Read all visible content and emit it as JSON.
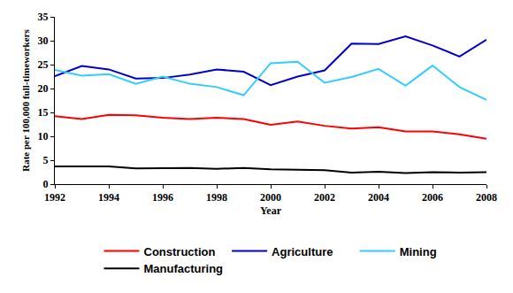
{
  "chart_data": {
    "type": "line",
    "x_label": "Year",
    "y_label": "Rate per 100,000 full-timeworkers",
    "x": [
      1992,
      1993,
      1994,
      1995,
      1996,
      1997,
      1998,
      1999,
      2000,
      2001,
      2002,
      2003,
      2004,
      2005,
      2006,
      2007,
      2008
    ],
    "series": [
      {
        "name": "Construction",
        "color": "#ff0000",
        "values": [
          14.2,
          13.6,
          14.5,
          14.4,
          13.9,
          13.6,
          13.9,
          13.6,
          12.4,
          13.1,
          12.2,
          11.6,
          11.9,
          11.0,
          11.0,
          10.4,
          9.5
        ]
      },
      {
        "name": "Agriculture",
        "color": "#0000cc",
        "values": [
          22.6,
          24.7,
          24.0,
          22.1,
          22.2,
          22.9,
          24.0,
          23.5,
          20.7,
          22.5,
          23.8,
          29.4,
          29.3,
          30.9,
          29.0,
          26.7,
          30.2
        ]
      },
      {
        "name": "Mining",
        "color": "#33ccff",
        "values": [
          23.9,
          22.7,
          23.0,
          21.0,
          22.5,
          21.0,
          20.3,
          18.6,
          25.3,
          25.6,
          21.2,
          22.4,
          24.1,
          20.6,
          24.8,
          20.3,
          17.6
        ]
      },
      {
        "name": "Manufacturing",
        "color": "#000000",
        "values": [
          3.7,
          3.7,
          3.7,
          3.3,
          3.4,
          3.4,
          3.2,
          3.4,
          3.1,
          3.0,
          2.9,
          2.4,
          2.6,
          2.3,
          2.5,
          2.4,
          2.5
        ]
      }
    ],
    "xlim": [
      1992,
      2008
    ],
    "xticks": [
      1992,
      1994,
      1996,
      1998,
      2000,
      2002,
      2004,
      2006,
      2008
    ],
    "ylim": [
      0,
      35
    ],
    "yticks": [
      0,
      5,
      10,
      15,
      20,
      25,
      30,
      35
    ],
    "grid": false,
    "legend": "bottom"
  }
}
